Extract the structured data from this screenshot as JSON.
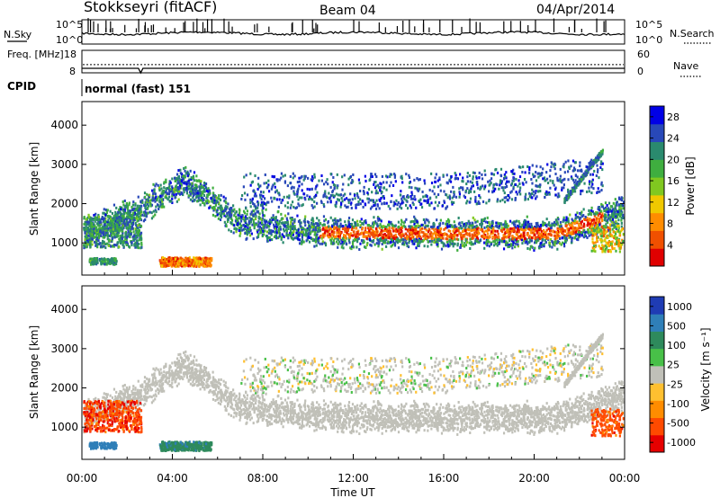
{
  "header": {
    "station": "Stokkseyri (fitACF)",
    "beam": "Beam 04",
    "date": "04/Apr/2014",
    "cpid_label": "CPID",
    "cpid_value": "normal (fast) 151"
  },
  "chart_data": [
    {
      "type": "line",
      "panel": "noise",
      "left_label": "N.Sky",
      "right_label": "N.Search",
      "left_ticks": [
        "10^5",
        "10^0"
      ],
      "right_ticks": [
        "10^5",
        "10^0"
      ],
      "series": [
        {
          "name": "N.Sky",
          "style": "solid"
        },
        {
          "name": "N.Search",
          "style": "dotted"
        }
      ]
    },
    {
      "type": "line",
      "panel": "frequency",
      "left_label": "Freq. [MHz]",
      "right_label": "Nave",
      "left_ticks": [
        18,
        8
      ],
      "right_ticks": [
        60,
        0
      ],
      "series": [
        {
          "name": "Freq.",
          "style": "solid",
          "value": 10
        },
        {
          "name": "Nave",
          "style": "dotted",
          "value": 22
        }
      ]
    },
    {
      "type": "heatmap",
      "panel": "power",
      "ylabel": "Slant Range [km]",
      "yticks": [
        1000,
        2000,
        3000,
        4000
      ],
      "ylim": [
        180,
        4600
      ],
      "xlim": [
        0,
        24
      ],
      "colorbar_label": "Power [dB]",
      "colorbar_ticks": [
        4,
        8,
        12,
        16,
        20,
        24,
        28
      ],
      "colorbar_range": [
        0,
        30
      ],
      "colors": [
        "#0000e6",
        "#2848b8",
        "#2a8a6e",
        "#3fae3f",
        "#80c820",
        "#f0c800",
        "#ff8c00",
        "#f05000",
        "#e00000"
      ]
    },
    {
      "type": "heatmap",
      "panel": "velocity",
      "ylabel": "Slant Range [km]",
      "yticks": [
        1000,
        2000,
        3000,
        4000
      ],
      "ylim": [
        180,
        4600
      ],
      "xlim": [
        0,
        24
      ],
      "xlabel": "Time UT",
      "xticks": [
        "00:00",
        "04:00",
        "08:00",
        "12:00",
        "16:00",
        "20:00",
        "00:00"
      ],
      "colorbar_label": "Velocity [m s⁻¹]",
      "colorbar_ticks": [
        "1000",
        "500",
        "100",
        "25",
        "-25",
        "-100",
        "-500",
        "-1000"
      ],
      "colors": [
        "#1f3cb4",
        "#2f7fb8",
        "#2e8a5c",
        "#48c048",
        "#c0c0b8",
        "#ffc030",
        "#ff8c00",
        "#ff4a00",
        "#e60000"
      ]
    }
  ]
}
